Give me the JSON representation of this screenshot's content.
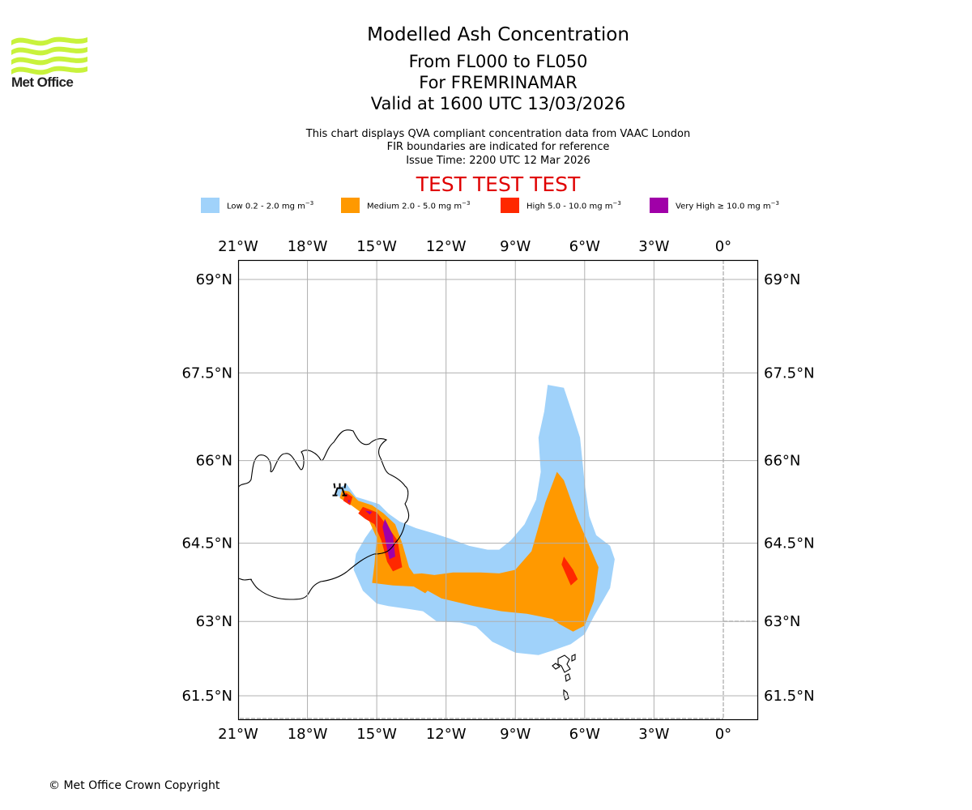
{
  "logo": {
    "name": "Met Office",
    "icon": "met-office-waves-icon",
    "color": "#c8f23c"
  },
  "header": {
    "title": "Modelled Ash Concentration",
    "levels": "From FL000 to FL050",
    "volcano": "For FREMRINAMAR",
    "valid": "Valid at 1600 UTC 13/03/2026",
    "note1": "This chart displays QVA compliant concentration data from VAAC London",
    "note2": "FIR boundaries are indicated for reference",
    "issue": "Issue Time: 2200 UTC 12 Mar 2026",
    "test_banner": "TEST TEST TEST"
  },
  "legend": [
    {
      "label": "Low 0.2 - 2.0 mg m",
      "unit_exp": "−3",
      "color": "#a0d2fa"
    },
    {
      "label": "Medium 2.0 - 5.0 mg m",
      "unit_exp": "−3",
      "color": "#ff9900"
    },
    {
      "label": "High 5.0 - 10.0 mg m",
      "unit_exp": "−3",
      "color": "#ff2800"
    },
    {
      "label": "Very High  ≥  10.0 mg m",
      "unit_exp": "−3",
      "color": "#a000a8"
    }
  ],
  "map": {
    "lon_range": [
      -21,
      1.5
    ],
    "lat_range": [
      61.1,
      69.3
    ],
    "lon_ticks": [
      {
        "value": -21,
        "label": "21°W"
      },
      {
        "value": -18,
        "label": "18°W"
      },
      {
        "value": -15,
        "label": "15°W"
      },
      {
        "value": -12,
        "label": "12°W"
      },
      {
        "value": -9,
        "label": "9°W"
      },
      {
        "value": -6,
        "label": "6°W"
      },
      {
        "value": -3,
        "label": "3°W"
      },
      {
        "value": 0,
        "label": "0°"
      }
    ],
    "lat_ticks": [
      {
        "value": 69,
        "label": "69°N"
      },
      {
        "value": 67.5,
        "label": "67.5°N"
      },
      {
        "value": 66,
        "label": "66°N"
      },
      {
        "value": 64.5,
        "label": "64.5°N"
      },
      {
        "value": 63,
        "label": "63°N"
      },
      {
        "value": 61.5,
        "label": "61.5°N"
      }
    ],
    "grid_color": "#b0b0b0",
    "volcano_symbol": {
      "name": "FREMRINAMAR",
      "lon": -16.6,
      "lat": 65.45
    },
    "ash_layers": [
      {
        "level": "low",
        "color": "#a0d2fa",
        "polygons": [
          [
            [
              -16.7,
              65.5
            ],
            [
              -16.3,
              65.58
            ],
            [
              -15.9,
              65.35
            ],
            [
              -15.5,
              65.3
            ],
            [
              -14.9,
              65.22
            ],
            [
              -14.5,
              65.05
            ],
            [
              -14.0,
              64.9
            ],
            [
              -13.3,
              64.78
            ],
            [
              -12.5,
              64.68
            ],
            [
              -11.8,
              64.58
            ],
            [
              -11.0,
              64.45
            ],
            [
              -10.2,
              64.38
            ],
            [
              -9.7,
              64.38
            ],
            [
              -9.2,
              64.55
            ],
            [
              -8.6,
              64.85
            ],
            [
              -8.1,
              65.3
            ],
            [
              -7.9,
              65.8
            ],
            [
              -8.0,
              66.4
            ],
            [
              -7.75,
              66.85
            ],
            [
              -7.6,
              67.3
            ],
            [
              -6.9,
              67.25
            ],
            [
              -6.6,
              66.9
            ],
            [
              -6.2,
              66.4
            ],
            [
              -6.0,
              65.6
            ],
            [
              -5.8,
              65.0
            ],
            [
              -5.5,
              64.65
            ],
            [
              -4.9,
              64.45
            ],
            [
              -4.7,
              64.2
            ],
            [
              -4.9,
              63.65
            ],
            [
              -5.6,
              63.1
            ],
            [
              -6.0,
              62.75
            ],
            [
              -6.6,
              62.55
            ],
            [
              -7.4,
              62.42
            ],
            [
              -8.0,
              62.33
            ],
            [
              -9.0,
              62.38
            ],
            [
              -10.0,
              62.6
            ],
            [
              -10.7,
              62.9
            ],
            [
              -11.4,
              62.98
            ],
            [
              -12.4,
              63.0
            ],
            [
              -13.0,
              63.2
            ],
            [
              -13.7,
              63.25
            ],
            [
              -14.5,
              63.3
            ],
            [
              -15.0,
              63.35
            ],
            [
              -15.6,
              63.6
            ],
            [
              -16.0,
              64.0
            ],
            [
              -15.9,
              64.3
            ],
            [
              -15.5,
              64.6
            ],
            [
              -15.0,
              64.9
            ],
            [
              -15.4,
              65.05
            ],
            [
              -16.2,
              65.25
            ],
            [
              -16.8,
              65.4
            ]
          ]
        ]
      },
      {
        "level": "medium",
        "color": "#ff9900",
        "polygons": [
          [
            [
              -16.5,
              65.47
            ],
            [
              -16.2,
              65.45
            ],
            [
              -15.8,
              65.28
            ],
            [
              -15.2,
              65.2
            ],
            [
              -14.7,
              65.05
            ],
            [
              -14.2,
              64.85
            ],
            [
              -13.9,
              64.5
            ],
            [
              -13.6,
              64.05
            ],
            [
              -13.4,
              63.92
            ],
            [
              -13.05,
              63.93
            ],
            [
              -12.5,
              63.9
            ],
            [
              -11.7,
              63.95
            ],
            [
              -10.5,
              63.95
            ],
            [
              -9.7,
              63.93
            ],
            [
              -9.0,
              64.0
            ],
            [
              -8.3,
              64.35
            ],
            [
              -7.7,
              65.25
            ],
            [
              -7.2,
              65.8
            ],
            [
              -6.9,
              65.65
            ],
            [
              -6.3,
              64.95
            ],
            [
              -5.9,
              64.55
            ],
            [
              -5.4,
              64.05
            ],
            [
              -5.6,
              63.4
            ],
            [
              -6.0,
              62.92
            ],
            [
              -6.5,
              62.8
            ],
            [
              -7.1,
              62.95
            ],
            [
              -7.4,
              63.05
            ],
            [
              -8.5,
              63.15
            ],
            [
              -9.6,
              63.2
            ],
            [
              -10.8,
              63.3
            ],
            [
              -12.2,
              63.45
            ],
            [
              -12.8,
              63.6
            ],
            [
              -12.9,
              63.55
            ],
            [
              -13.4,
              63.68
            ],
            [
              -14.3,
              63.7
            ],
            [
              -15.2,
              63.75
            ],
            [
              -15.1,
              64.1
            ],
            [
              -15.0,
              64.6
            ],
            [
              -15.4,
              64.98
            ],
            [
              -16.1,
              65.2
            ],
            [
              -16.6,
              65.33
            ]
          ]
        ]
      },
      {
        "level": "high",
        "color": "#ff2800",
        "polygons": [
          [
            [
              -16.35,
              65.43
            ],
            [
              -16.05,
              65.35
            ],
            [
              -16.15,
              65.2
            ],
            [
              -16.45,
              65.28
            ]
          ],
          [
            [
              -15.6,
              65.17
            ],
            [
              -15.0,
              65.07
            ],
            [
              -14.6,
              64.85
            ],
            [
              -14.1,
              64.55
            ],
            [
              -13.9,
              64.05
            ],
            [
              -14.3,
              63.97
            ],
            [
              -14.55,
              64.15
            ],
            [
              -14.8,
              64.55
            ],
            [
              -15.1,
              64.85
            ],
            [
              -15.5,
              64.95
            ],
            [
              -15.8,
              65.05
            ]
          ],
          [
            [
              -6.9,
              64.25
            ],
            [
              -6.5,
              64.0
            ],
            [
              -6.3,
              63.82
            ],
            [
              -6.6,
              63.7
            ],
            [
              -7.0,
              64.1
            ]
          ]
        ]
      },
      {
        "level": "very_high",
        "color": "#a000a8",
        "polygons": [
          [
            [
              -16.25,
              65.3
            ],
            [
              -16.15,
              65.28
            ],
            [
              -16.22,
              65.24
            ]
          ],
          [
            [
              -15.5,
              65.1
            ],
            [
              -15.2,
              65.08
            ],
            [
              -15.3,
              65.03
            ]
          ],
          [
            [
              -14.65,
              64.95
            ],
            [
              -14.3,
              64.65
            ],
            [
              -14.2,
              64.25
            ],
            [
              -14.45,
              64.2
            ],
            [
              -14.6,
              64.5
            ],
            [
              -14.75,
              64.8
            ]
          ]
        ]
      }
    ]
  },
  "copyright": "© Met Office Crown Copyright"
}
